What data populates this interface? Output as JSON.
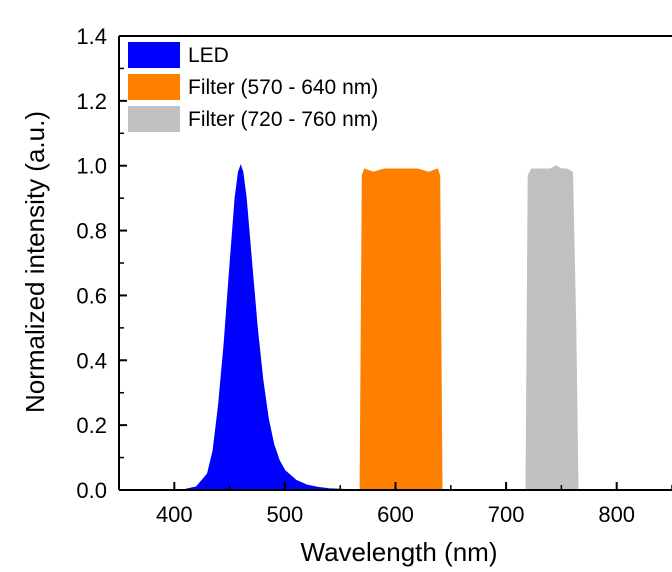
{
  "chart_data": {
    "type": "area",
    "xlabel": "Wavelength (nm)",
    "ylabel": "Normalized intensity (a.u.)",
    "xlim": [
      350,
      850
    ],
    "ylim": [
      0,
      1.4
    ],
    "x_ticks": [
      "400",
      "500",
      "600",
      "700",
      "800"
    ],
    "y_ticks": [
      "0.0",
      "0.2",
      "0.4",
      "0.6",
      "0.8",
      "1.0",
      "1.2",
      "1.4"
    ],
    "legend_position": "top-left",
    "grid": false,
    "series": [
      {
        "name": "LED",
        "color": "#0000ff",
        "x": [
          400,
          410,
          420,
          430,
          435,
          440,
          445,
          450,
          455,
          458,
          460,
          462,
          465,
          470,
          475,
          480,
          485,
          490,
          495,
          500,
          510,
          520,
          530,
          540,
          560,
          580
        ],
        "y": [
          0.0,
          0.002,
          0.01,
          0.05,
          0.12,
          0.26,
          0.45,
          0.68,
          0.9,
          0.98,
          1.0,
          0.98,
          0.9,
          0.7,
          0.5,
          0.34,
          0.22,
          0.14,
          0.09,
          0.06,
          0.03,
          0.015,
          0.008,
          0.004,
          0.001,
          0.0
        ]
      },
      {
        "name": "Filter (570 - 640 nm)",
        "color": "#ff8000",
        "x": [
          568,
          570,
          572,
          580,
          590,
          600,
          610,
          620,
          630,
          638,
          640,
          642
        ],
        "y": [
          0.0,
          0.97,
          0.99,
          0.98,
          0.99,
          0.99,
          0.99,
          0.99,
          0.98,
          0.99,
          0.97,
          0.0
        ]
      },
      {
        "name": "Filter (720 - 760 nm)",
        "color": "#c0c0c0",
        "x": [
          718,
          720,
          723,
          730,
          740,
          745,
          750,
          755,
          760,
          763,
          765
        ],
        "y": [
          0.0,
          0.97,
          0.99,
          0.99,
          0.99,
          1.0,
          0.99,
          0.99,
          0.98,
          0.5,
          0.0
        ]
      }
    ]
  }
}
